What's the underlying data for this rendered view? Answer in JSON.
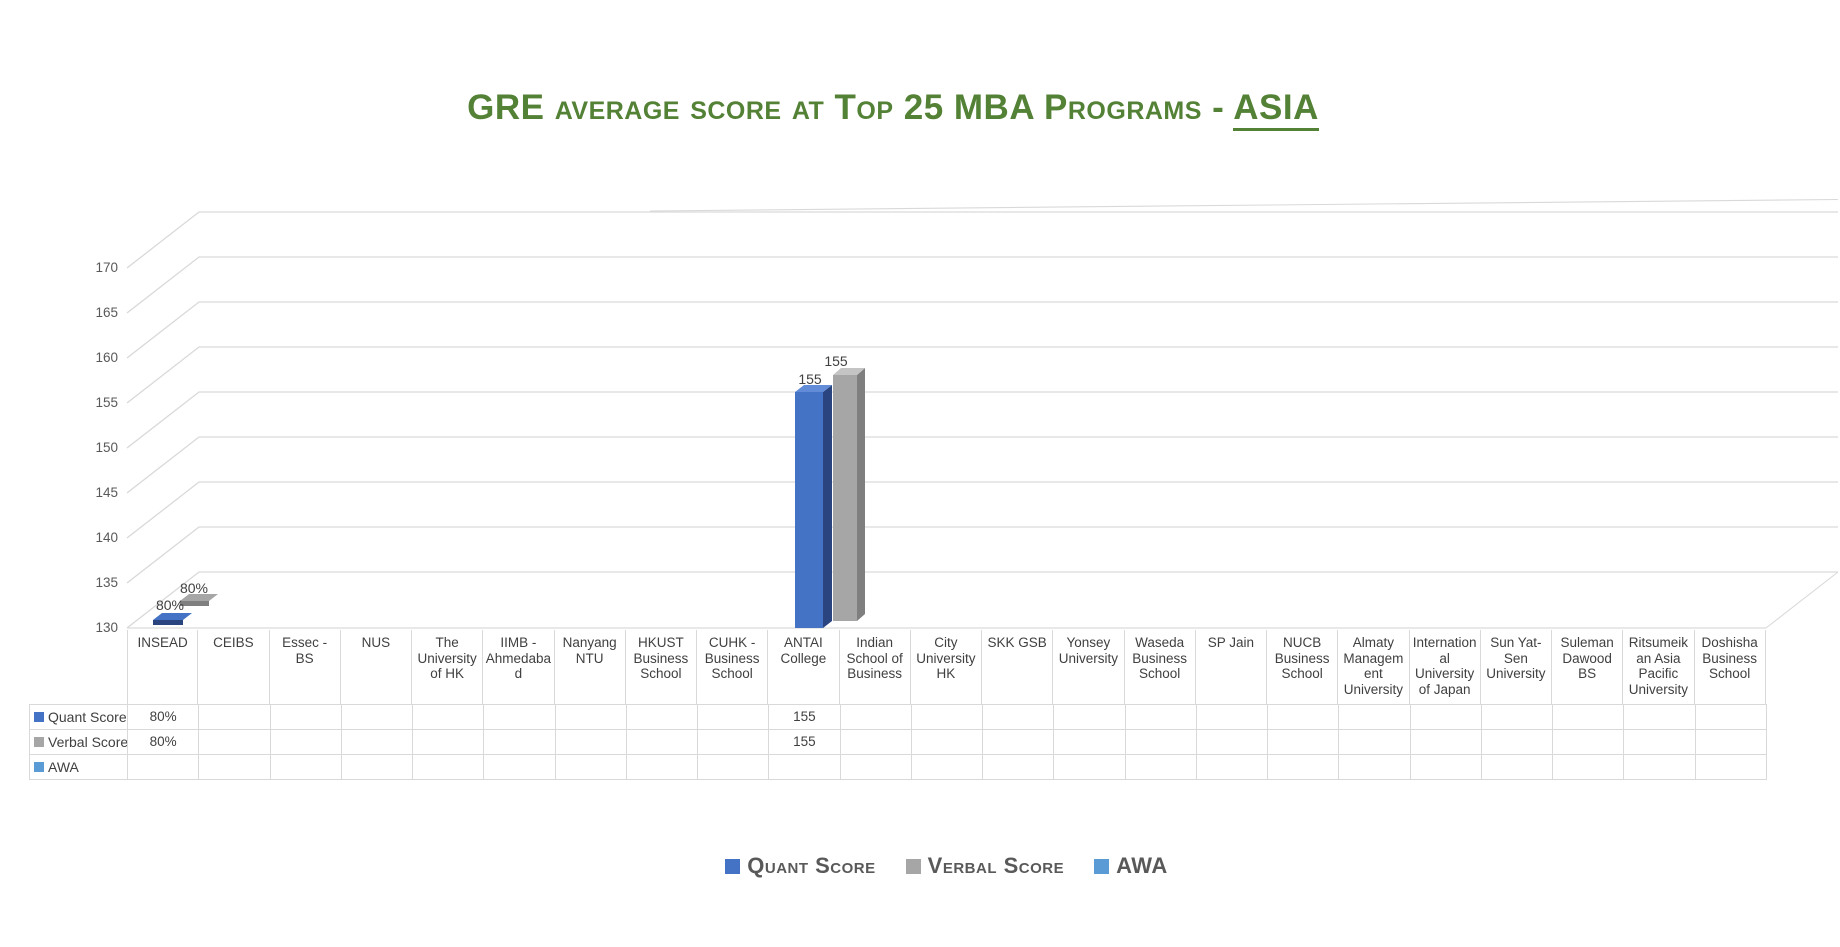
{
  "chart_data": {
    "type": "bar",
    "style": "3d-clustered-column",
    "title": "GRE average score at Top 25 MBA Programs - ASIA",
    "title_prefix": "GRE average score at Top 25 MBA Programs - ",
    "title_highlight": "ASIA",
    "categories": [
      "INSEAD",
      "CEIBS",
      "Essec - BS",
      "NUS",
      "The University of HK",
      "IIMB - Ahmedabad",
      "Nanyang NTU",
      "HKUST Business School",
      "CUHK - Business School",
      "ANTAI College",
      "Indian School of Business",
      "City University HK",
      "SKK GSB",
      "Yonsey University",
      "Waseda Business School",
      "SP Jain",
      "NUCB Business School",
      "Almaty Management University",
      "International University of Japan",
      "Sun Yat-Sen University",
      "Suleman Dawood BS",
      "Ritsumeikan Asia Pacific University",
      "Doshisha Business School"
    ],
    "series": [
      {
        "name": "Quant Score",
        "color": "#4472C4",
        "values": [
          "80%",
          "",
          "",
          "",
          "",
          "",
          "",
          "",
          "",
          155,
          "",
          "",
          "",
          "",
          "",
          "",
          "",
          "",
          "",
          "",
          "",
          "",
          ""
        ]
      },
      {
        "name": "Verbal Score",
        "color": "#A6A6A6",
        "values": [
          "80%",
          "",
          "",
          "",
          "",
          "",
          "",
          "",
          "",
          155,
          "",
          "",
          "",
          "",
          "",
          "",
          "",
          "",
          "",
          "",
          "",
          "",
          ""
        ]
      },
      {
        "name": "AWA",
        "color": "#5B9BD5",
        "values": [
          "",
          "",
          "",
          "",
          "",
          "",
          "",
          "",
          "",
          "",
          "",
          "",
          "",
          "",
          "",
          "",
          "",
          "",
          "",
          "",
          "",
          "",
          ""
        ]
      }
    ],
    "y_axis": {
      "ticks": [
        170,
        165,
        160,
        155,
        150,
        145,
        140,
        135,
        130
      ],
      "min": 130,
      "max": 170,
      "step": 5
    },
    "legend": {
      "position": "bottom",
      "labels": [
        "Quant Score",
        "Verbal Score",
        "AWA"
      ]
    },
    "grid": true,
    "colors": {
      "title": "#538135",
      "grid": "#D9D9D9",
      "axis_text": "#595959",
      "table_text": "#404040",
      "quant_front": "#4472C4",
      "quant_top": "#638CD8",
      "quant_side": "#2A4480",
      "verbal_front": "#A6A6A6",
      "verbal_top": "#C4C4C4",
      "verbal_side": "#7F7F7F",
      "awa": "#5B9BD5"
    }
  }
}
